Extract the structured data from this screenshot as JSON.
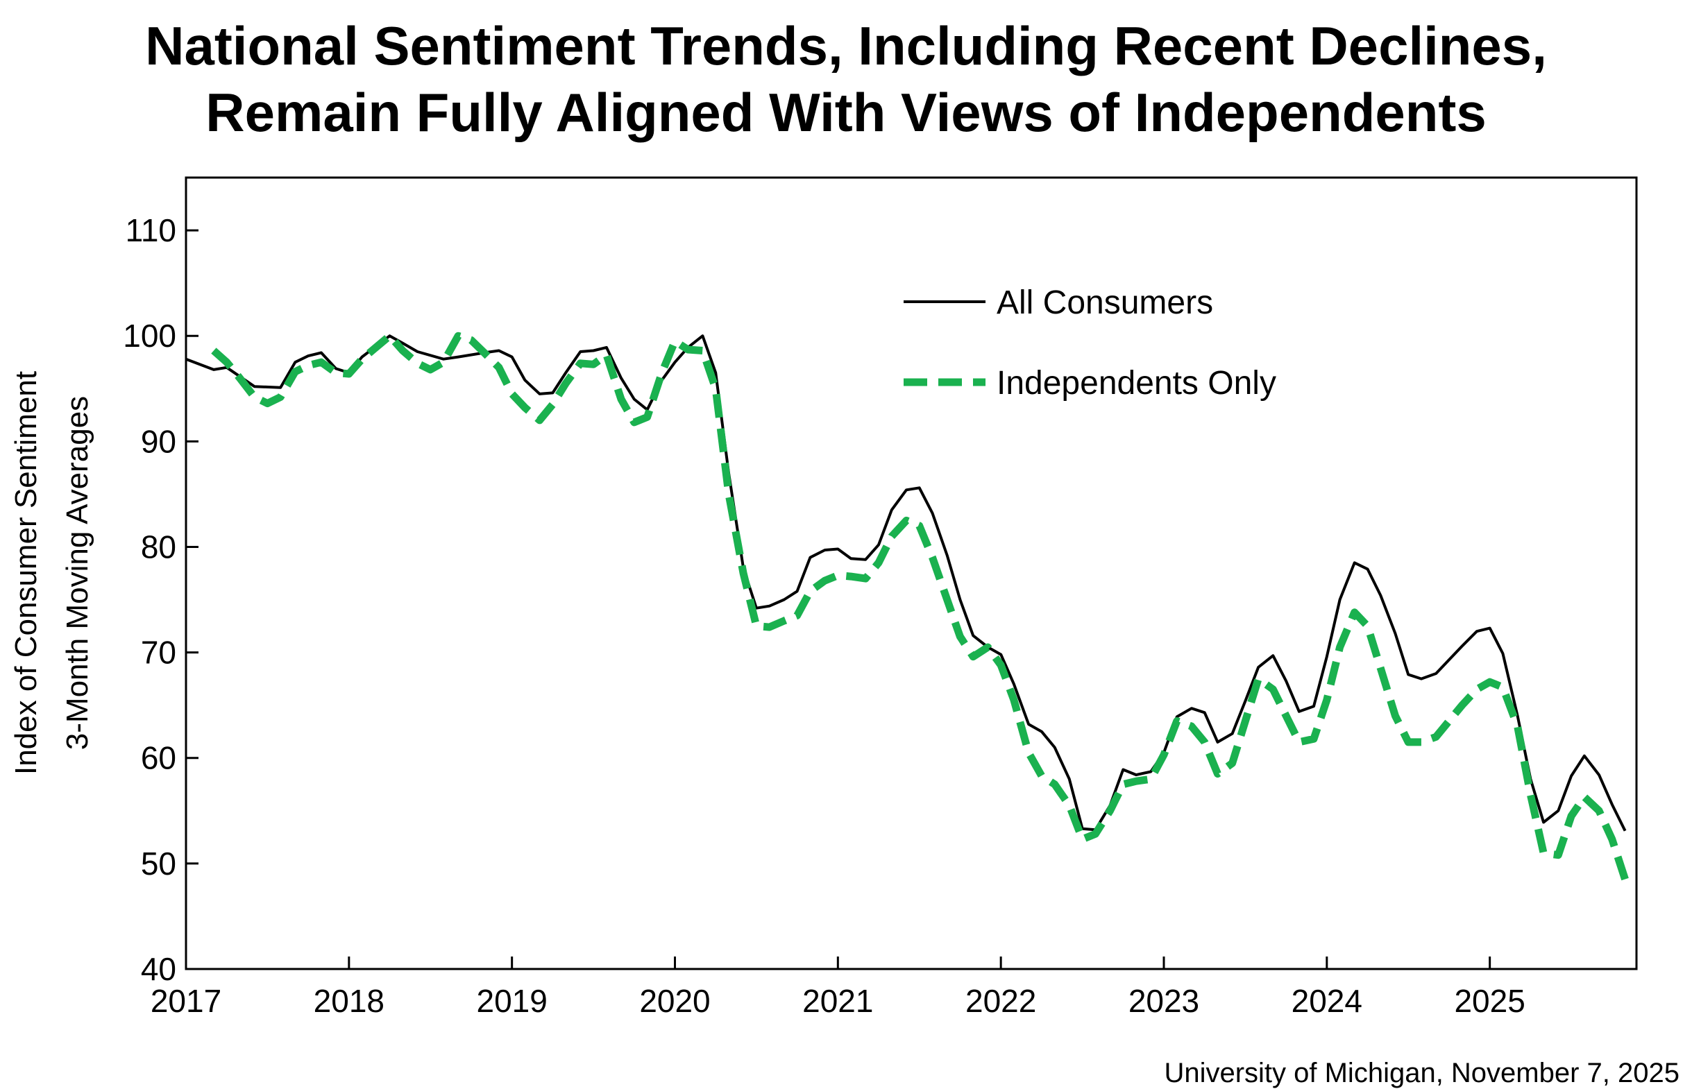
{
  "chart_data": {
    "type": "line",
    "title_lines": [
      "National Sentiment Trends, Including Recent Declines,",
      "Remain Fully Aligned With Views of Independents"
    ],
    "ylabel_lines": [
      "Index of Consumer Sentiment",
      "3-Month Moving Averages"
    ],
    "xlabel": "",
    "ylim": [
      40,
      115
    ],
    "yticks": [
      40,
      50,
      60,
      70,
      80,
      90,
      100,
      110
    ],
    "xlim": [
      2017,
      2025.9
    ],
    "xticks": [
      2017,
      2018,
      2019,
      2020,
      2021,
      2022,
      2023,
      2024,
      2025
    ],
    "legend_position": "top-right",
    "source": "University of Michigan, November 7, 2025",
    "series": [
      {
        "name": "All Consumers",
        "color": "#000000",
        "style": "solid",
        "points": [
          [
            2017.0,
            97.8
          ],
          [
            2017.17,
            96.8
          ],
          [
            2017.25,
            97.0
          ],
          [
            2017.42,
            95.2
          ],
          [
            2017.58,
            95.1
          ],
          [
            2017.67,
            97.5
          ],
          [
            2017.75,
            98.1
          ],
          [
            2017.83,
            98.4
          ],
          [
            2017.92,
            96.9
          ],
          [
            2018.0,
            96.5
          ],
          [
            2018.08,
            98.0
          ],
          [
            2018.25,
            100.0
          ],
          [
            2018.33,
            99.3
          ],
          [
            2018.42,
            98.5
          ],
          [
            2018.58,
            97.8
          ],
          [
            2018.67,
            98.0
          ],
          [
            2018.83,
            98.4
          ],
          [
            2018.92,
            98.6
          ],
          [
            2019.0,
            98.0
          ],
          [
            2019.08,
            95.8
          ],
          [
            2019.17,
            94.5
          ],
          [
            2019.25,
            94.6
          ],
          [
            2019.33,
            96.5
          ],
          [
            2019.42,
            98.5
          ],
          [
            2019.5,
            98.6
          ],
          [
            2019.58,
            98.9
          ],
          [
            2019.67,
            96.0
          ],
          [
            2019.75,
            94.0
          ],
          [
            2019.83,
            93.0
          ],
          [
            2019.92,
            95.8
          ],
          [
            2020.0,
            97.5
          ],
          [
            2020.08,
            98.9
          ],
          [
            2020.17,
            100.0
          ],
          [
            2020.25,
            96.5
          ],
          [
            2020.33,
            87.0
          ],
          [
            2020.42,
            78.0
          ],
          [
            2020.5,
            74.2
          ],
          [
            2020.58,
            74.4
          ],
          [
            2020.67,
            75.0
          ],
          [
            2020.75,
            75.8
          ],
          [
            2020.83,
            79.0
          ],
          [
            2020.92,
            79.7
          ],
          [
            2021.0,
            79.8
          ],
          [
            2021.08,
            78.9
          ],
          [
            2021.17,
            78.8
          ],
          [
            2021.25,
            80.2
          ],
          [
            2021.33,
            83.5
          ],
          [
            2021.42,
            85.4
          ],
          [
            2021.5,
            85.6
          ],
          [
            2021.58,
            83.2
          ],
          [
            2021.67,
            79.2
          ],
          [
            2021.75,
            75.0
          ],
          [
            2021.83,
            71.6
          ],
          [
            2021.92,
            70.5
          ],
          [
            2022.0,
            69.8
          ],
          [
            2022.08,
            67.0
          ],
          [
            2022.17,
            63.2
          ],
          [
            2022.25,
            62.5
          ],
          [
            2022.33,
            61.0
          ],
          [
            2022.42,
            58.0
          ],
          [
            2022.5,
            53.3
          ],
          [
            2022.58,
            53.2
          ],
          [
            2022.67,
            55.5
          ],
          [
            2022.75,
            58.9
          ],
          [
            2022.83,
            58.4
          ],
          [
            2022.92,
            58.7
          ],
          [
            2023.0,
            60.5
          ],
          [
            2023.08,
            63.9
          ],
          [
            2023.17,
            64.7
          ],
          [
            2023.25,
            64.3
          ],
          [
            2023.33,
            61.5
          ],
          [
            2023.42,
            62.3
          ],
          [
            2023.5,
            65.4
          ],
          [
            2023.58,
            68.6
          ],
          [
            2023.67,
            69.7
          ],
          [
            2023.75,
            67.3
          ],
          [
            2023.83,
            64.4
          ],
          [
            2023.92,
            64.9
          ],
          [
            2024.0,
            69.6
          ],
          [
            2024.08,
            75.0
          ],
          [
            2024.17,
            78.5
          ],
          [
            2024.25,
            77.9
          ],
          [
            2024.33,
            75.4
          ],
          [
            2024.42,
            71.8
          ],
          [
            2024.5,
            67.9
          ],
          [
            2024.58,
            67.5
          ],
          [
            2024.67,
            68.0
          ],
          [
            2024.75,
            69.3
          ],
          [
            2024.83,
            70.6
          ],
          [
            2024.92,
            72.0
          ],
          [
            2025.0,
            72.3
          ],
          [
            2025.08,
            69.9
          ],
          [
            2025.17,
            64.0
          ],
          [
            2025.25,
            58.0
          ],
          [
            2025.33,
            53.9
          ],
          [
            2025.42,
            55.0
          ],
          [
            2025.5,
            58.3
          ],
          [
            2025.58,
            60.2
          ],
          [
            2025.67,
            58.4
          ],
          [
            2025.75,
            55.6
          ],
          [
            2025.83,
            53.1
          ]
        ]
      },
      {
        "name": "Independents Only",
        "color": "#1ab14f",
        "style": "dashed",
        "points": [
          [
            2017.17,
            98.6
          ],
          [
            2017.25,
            97.5
          ],
          [
            2017.33,
            96.0
          ],
          [
            2017.42,
            94.2
          ],
          [
            2017.5,
            93.6
          ],
          [
            2017.58,
            94.2
          ],
          [
            2017.67,
            96.6
          ],
          [
            2017.75,
            97.2
          ],
          [
            2017.83,
            97.5
          ],
          [
            2017.92,
            96.5
          ],
          [
            2018.0,
            96.4
          ],
          [
            2018.08,
            97.8
          ],
          [
            2018.25,
            100.0
          ],
          [
            2018.33,
            98.6
          ],
          [
            2018.42,
            97.4
          ],
          [
            2018.5,
            96.8
          ],
          [
            2018.58,
            97.5
          ],
          [
            2018.67,
            100.0
          ],
          [
            2018.75,
            99.6
          ],
          [
            2018.83,
            98.4
          ],
          [
            2018.92,
            97.0
          ],
          [
            2019.0,
            94.5
          ],
          [
            2019.08,
            93.2
          ],
          [
            2019.17,
            92.0
          ],
          [
            2019.25,
            93.5
          ],
          [
            2019.33,
            95.5
          ],
          [
            2019.42,
            97.4
          ],
          [
            2019.5,
            97.3
          ],
          [
            2019.58,
            98.2
          ],
          [
            2019.67,
            94.0
          ],
          [
            2019.75,
            91.8
          ],
          [
            2019.83,
            92.3
          ],
          [
            2019.92,
            96.5
          ],
          [
            2020.0,
            99.5
          ],
          [
            2020.08,
            98.7
          ],
          [
            2020.17,
            98.6
          ],
          [
            2020.25,
            95.0
          ],
          [
            2020.33,
            85.0
          ],
          [
            2020.42,
            77.5
          ],
          [
            2020.5,
            72.5
          ],
          [
            2020.58,
            72.4
          ],
          [
            2020.67,
            73.0
          ],
          [
            2020.75,
            73.5
          ],
          [
            2020.83,
            75.8
          ],
          [
            2020.92,
            76.8
          ],
          [
            2021.0,
            77.3
          ],
          [
            2021.08,
            77.2
          ],
          [
            2021.17,
            77.0
          ],
          [
            2021.25,
            78.5
          ],
          [
            2021.33,
            81.0
          ],
          [
            2021.42,
            82.5
          ],
          [
            2021.5,
            82.0
          ],
          [
            2021.58,
            79.0
          ],
          [
            2021.67,
            75.0
          ],
          [
            2021.75,
            71.5
          ],
          [
            2021.83,
            69.6
          ],
          [
            2021.92,
            70.5
          ],
          [
            2022.0,
            68.8
          ],
          [
            2022.08,
            65.5
          ],
          [
            2022.17,
            60.5
          ],
          [
            2022.25,
            58.3
          ],
          [
            2022.33,
            57.5
          ],
          [
            2022.42,
            55.5
          ],
          [
            2022.5,
            52.3
          ],
          [
            2022.58,
            52.8
          ],
          [
            2022.67,
            55.0
          ],
          [
            2022.75,
            57.5
          ],
          [
            2022.83,
            57.8
          ],
          [
            2022.92,
            58.0
          ],
          [
            2023.0,
            60.3
          ],
          [
            2023.08,
            63.5
          ],
          [
            2023.17,
            63.0
          ],
          [
            2023.25,
            61.5
          ],
          [
            2023.33,
            58.5
          ],
          [
            2023.42,
            59.5
          ],
          [
            2023.5,
            63.5
          ],
          [
            2023.58,
            67.5
          ],
          [
            2023.67,
            66.5
          ],
          [
            2023.75,
            64.0
          ],
          [
            2023.83,
            61.5
          ],
          [
            2023.92,
            61.8
          ],
          [
            2024.0,
            65.5
          ],
          [
            2024.08,
            70.5
          ],
          [
            2024.17,
            73.8
          ],
          [
            2024.25,
            72.5
          ],
          [
            2024.33,
            68.5
          ],
          [
            2024.42,
            64.0
          ],
          [
            2024.5,
            61.5
          ],
          [
            2024.58,
            61.5
          ],
          [
            2024.67,
            62.0
          ],
          [
            2024.75,
            63.5
          ],
          [
            2024.83,
            65.0
          ],
          [
            2024.92,
            66.5
          ],
          [
            2025.0,
            67.2
          ],
          [
            2025.08,
            66.7
          ],
          [
            2025.17,
            63.0
          ],
          [
            2025.25,
            56.5
          ],
          [
            2025.33,
            51.0
          ],
          [
            2025.42,
            50.8
          ],
          [
            2025.5,
            54.5
          ],
          [
            2025.58,
            56.3
          ],
          [
            2025.67,
            55.0
          ],
          [
            2025.75,
            52.3
          ],
          [
            2025.83,
            48.5
          ]
        ]
      }
    ]
  }
}
